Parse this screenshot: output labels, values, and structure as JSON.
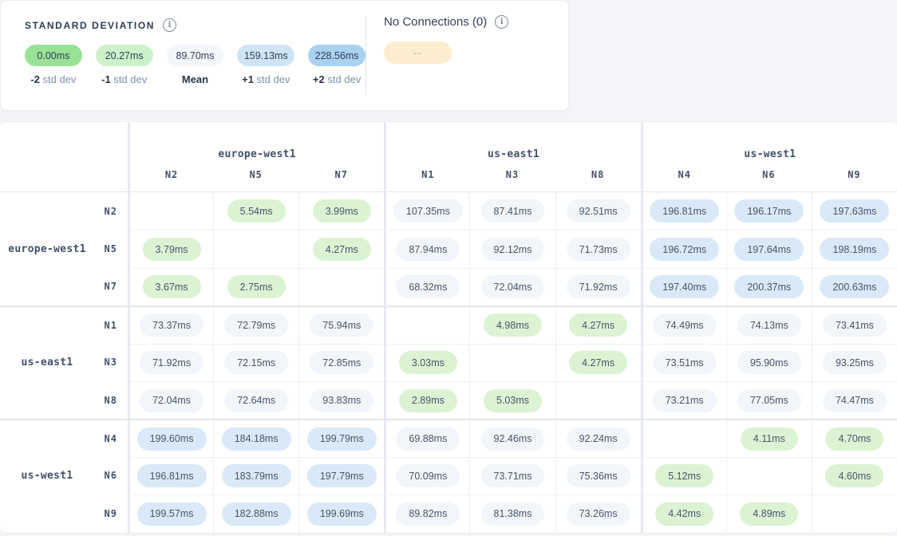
{
  "legend_card": {
    "std_dev": {
      "title": "STANDARD DEVIATION",
      "info_icon_glyph": "i",
      "stops": [
        {
          "value": "0.00ms",
          "color": "#98e296",
          "label_bold": "-2",
          "label_rest": "std dev"
        },
        {
          "value": "20.27ms",
          "color": "#cdf2c9",
          "label_bold": "-1",
          "label_rest": "std dev"
        },
        {
          "value": "89.70ms",
          "color": "#f3f6fb",
          "label_bold": "Mean",
          "label_rest": ""
        },
        {
          "value": "159.13ms",
          "color": "#cfe4f7",
          "label_bold": "+1",
          "label_rest": "std dev"
        },
        {
          "value": "228.56ms",
          "color": "#a8d1f2",
          "label_bold": "+2",
          "label_rest": "std dev"
        }
      ]
    },
    "no_connections": {
      "title": "No Connections (0)",
      "info_icon_glyph": "i",
      "pill_text": "--",
      "pill_color": "#fcedcf"
    }
  },
  "matrix": {
    "tone_colors": {
      "green": "#dcf3d3",
      "gray": "#f2f5f9",
      "blue": "#d9e9f8"
    },
    "column_groups": [
      {
        "region": "europe-west1",
        "nodes": [
          "N2",
          "N5",
          "N7"
        ]
      },
      {
        "region": "us-east1",
        "nodes": [
          "N1",
          "N3",
          "N8"
        ]
      },
      {
        "region": "us-west1",
        "nodes": [
          "N4",
          "N6",
          "N9"
        ]
      }
    ],
    "rows": [
      {
        "region": "europe-west1",
        "node": "N2",
        "cells": [
          null,
          {
            "v": "5.54ms",
            "tone": "green"
          },
          {
            "v": "3.99ms",
            "tone": "green"
          },
          {
            "v": "107.35ms",
            "tone": "gray"
          },
          {
            "v": "87.41ms",
            "tone": "gray"
          },
          {
            "v": "92.51ms",
            "tone": "gray"
          },
          {
            "v": "196.81ms",
            "tone": "blue"
          },
          {
            "v": "196.17ms",
            "tone": "blue"
          },
          {
            "v": "197.63ms",
            "tone": "blue"
          }
        ]
      },
      {
        "region": "europe-west1",
        "node": "N5",
        "cells": [
          {
            "v": "3.79ms",
            "tone": "green"
          },
          null,
          {
            "v": "4.27ms",
            "tone": "green"
          },
          {
            "v": "87.94ms",
            "tone": "gray"
          },
          {
            "v": "92.12ms",
            "tone": "gray"
          },
          {
            "v": "71.73ms",
            "tone": "gray"
          },
          {
            "v": "196.72ms",
            "tone": "blue"
          },
          {
            "v": "197.64ms",
            "tone": "blue"
          },
          {
            "v": "198.19ms",
            "tone": "blue"
          }
        ]
      },
      {
        "region": "europe-west1",
        "node": "N7",
        "cells": [
          {
            "v": "3.67ms",
            "tone": "green"
          },
          {
            "v": "2.75ms",
            "tone": "green"
          },
          null,
          {
            "v": "68.32ms",
            "tone": "gray"
          },
          {
            "v": "72.04ms",
            "tone": "gray"
          },
          {
            "v": "71.92ms",
            "tone": "gray"
          },
          {
            "v": "197.40ms",
            "tone": "blue"
          },
          {
            "v": "200.37ms",
            "tone": "blue"
          },
          {
            "v": "200.63ms",
            "tone": "blue"
          }
        ]
      },
      {
        "region": "us-east1",
        "node": "N1",
        "cells": [
          {
            "v": "73.37ms",
            "tone": "gray"
          },
          {
            "v": "72.79ms",
            "tone": "gray"
          },
          {
            "v": "75.94ms",
            "tone": "gray"
          },
          null,
          {
            "v": "4.98ms",
            "tone": "green"
          },
          {
            "v": "4.27ms",
            "tone": "green"
          },
          {
            "v": "74.49ms",
            "tone": "gray"
          },
          {
            "v": "74.13ms",
            "tone": "gray"
          },
          {
            "v": "73.41ms",
            "tone": "gray"
          }
        ]
      },
      {
        "region": "us-east1",
        "node": "N3",
        "cells": [
          {
            "v": "71.92ms",
            "tone": "gray"
          },
          {
            "v": "72.15ms",
            "tone": "gray"
          },
          {
            "v": "72.85ms",
            "tone": "gray"
          },
          {
            "v": "3.03ms",
            "tone": "green"
          },
          null,
          {
            "v": "4.27ms",
            "tone": "green"
          },
          {
            "v": "73.51ms",
            "tone": "gray"
          },
          {
            "v": "95.90ms",
            "tone": "gray"
          },
          {
            "v": "93.25ms",
            "tone": "gray"
          }
        ]
      },
      {
        "region": "us-east1",
        "node": "N8",
        "cells": [
          {
            "v": "72.04ms",
            "tone": "gray"
          },
          {
            "v": "72.64ms",
            "tone": "gray"
          },
          {
            "v": "93.83ms",
            "tone": "gray"
          },
          {
            "v": "2.89ms",
            "tone": "green"
          },
          {
            "v": "5.03ms",
            "tone": "green"
          },
          null,
          {
            "v": "73.21ms",
            "tone": "gray"
          },
          {
            "v": "77.05ms",
            "tone": "gray"
          },
          {
            "v": "74.47ms",
            "tone": "gray"
          }
        ]
      },
      {
        "region": "us-west1",
        "node": "N4",
        "cells": [
          {
            "v": "199.60ms",
            "tone": "blue"
          },
          {
            "v": "184.18ms",
            "tone": "blue"
          },
          {
            "v": "199.79ms",
            "tone": "blue"
          },
          {
            "v": "69.88ms",
            "tone": "gray"
          },
          {
            "v": "92.46ms",
            "tone": "gray"
          },
          {
            "v": "92.24ms",
            "tone": "gray"
          },
          null,
          {
            "v": "4.11ms",
            "tone": "green"
          },
          {
            "v": "4.70ms",
            "tone": "green"
          }
        ]
      },
      {
        "region": "us-west1",
        "node": "N6",
        "cells": [
          {
            "v": "196.81ms",
            "tone": "blue"
          },
          {
            "v": "183.79ms",
            "tone": "blue"
          },
          {
            "v": "197.79ms",
            "tone": "blue"
          },
          {
            "v": "70.09ms",
            "tone": "gray"
          },
          {
            "v": "73.71ms",
            "tone": "gray"
          },
          {
            "v": "75.36ms",
            "tone": "gray"
          },
          {
            "v": "5.12ms",
            "tone": "green"
          },
          null,
          {
            "v": "4.60ms",
            "tone": "green"
          }
        ]
      },
      {
        "region": "us-west1",
        "node": "N9",
        "cells": [
          {
            "v": "199.57ms",
            "tone": "blue"
          },
          {
            "v": "182.88ms",
            "tone": "blue"
          },
          {
            "v": "199.69ms",
            "tone": "blue"
          },
          {
            "v": "89.82ms",
            "tone": "gray"
          },
          {
            "v": "81.38ms",
            "tone": "gray"
          },
          {
            "v": "73.26ms",
            "tone": "gray"
          },
          {
            "v": "4.42ms",
            "tone": "green"
          },
          {
            "v": "4.89ms",
            "tone": "green"
          },
          null
        ]
      }
    ]
  }
}
